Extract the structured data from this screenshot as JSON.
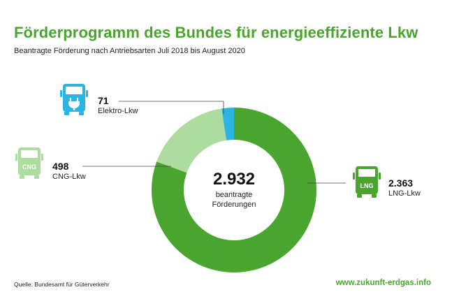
{
  "header": {
    "title": "Förderprogramm des Bundes für energieeffiziente Lkw",
    "subtitle": "Beantragte Förderung nach Antriebsarten Juli 2018 bis August 2020"
  },
  "center": {
    "value": "2.932",
    "label_line1": "beantragte",
    "label_line2": "Förderungen"
  },
  "icons": {
    "elektro": "electric-truck-icon",
    "cng": "cng-truck-icon",
    "lng": "lng-truck-icon",
    "cng_text": "CNG",
    "lng_text": "LNG"
  },
  "colors": {
    "lng": "#4aa52e",
    "cng": "#aedb9e",
    "elektro": "#2cb5e2",
    "title": "#4aa52e"
  },
  "chart_data": {
    "type": "pie",
    "donut": true,
    "total": 2932,
    "slices": [
      {
        "name": "LNG-Lkw",
        "value": 2363,
        "value_label": "2.363",
        "color": "#4aa52e"
      },
      {
        "name": "CNG-Lkw",
        "value": 498,
        "value_label": "498",
        "color": "#aedb9e"
      },
      {
        "name": "Elektro-Lkw",
        "value": 71,
        "value_label": "71",
        "color": "#2cb5e2"
      }
    ]
  },
  "footer": {
    "source": "Quelle: Bundesamt für Güterverkehr",
    "url": "www.zukunft-erdgas.info"
  }
}
